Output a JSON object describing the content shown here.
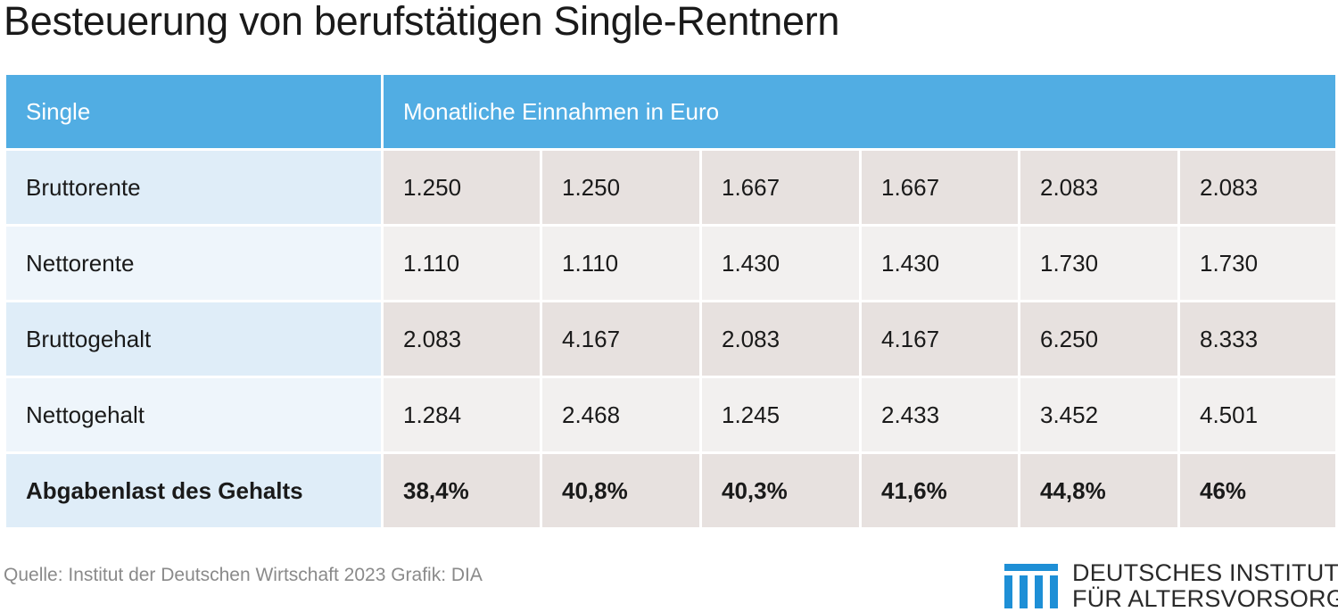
{
  "title": "Besteuerung von berufstätigen Single-Rentnern",
  "chart_data": {
    "type": "table",
    "columns": [
      "Single",
      "Monatliche Einnahmen in Euro"
    ],
    "rows": [
      {
        "label": "Bruttorente",
        "values": [
          "1.250",
          "1.250",
          "1.667",
          "1.667",
          "2.083",
          "2.083"
        ],
        "bold": false
      },
      {
        "label": "Nettorente",
        "values": [
          "1.110",
          "1.110",
          "1.430",
          "1.430",
          "1.730",
          "1.730"
        ],
        "bold": false
      },
      {
        "label": "Bruttogehalt",
        "values": [
          "2.083",
          "4.167",
          "2.083",
          "4.167",
          "6.250",
          "8.333"
        ],
        "bold": false
      },
      {
        "label": "Nettogehalt",
        "values": [
          "1.284",
          "2.468",
          "1.245",
          "2.433",
          "3.452",
          "4.501"
        ],
        "bold": false
      },
      {
        "label": "Abgabenlast des Gehalts",
        "values": [
          "38,4%",
          "40,8%",
          "40,3%",
          "41,6%",
          "44,8%",
          "46%"
        ],
        "bold": true
      }
    ]
  },
  "footer": {
    "source": "Quelle: Institut der Deutschen Wirtschaft 2023  Grafik: DIA"
  },
  "logo": {
    "line1": "DEUTSCHES INSTITUT",
    "line2": "FÜR ALTERSVORSORGE",
    "color": "#1e8fd6"
  },
  "colors": {
    "header": "#51ade3",
    "label_dark": "#dfedf8",
    "label_light": "#eef5fb",
    "value_dark": "#e7e1df",
    "value_light": "#f2f0ef"
  }
}
